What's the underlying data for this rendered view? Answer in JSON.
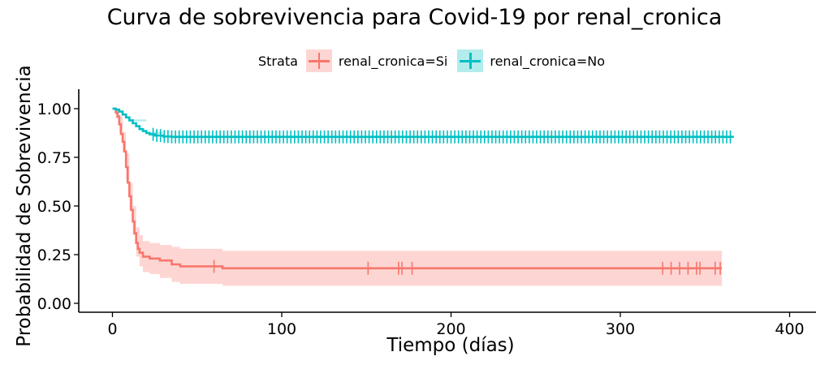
{
  "chart_data": {
    "type": "line",
    "title": "Curva de sobrevivencia para Covid-19 por renal_cronica",
    "xlabel": "Tiempo (días)",
    "ylabel": "Probabilidad de Sobrevivencia",
    "xlim": [
      -8,
      407
    ],
    "ylim": [
      -0.05,
      1.05
    ],
    "xticks": [
      0,
      100,
      200,
      300,
      400
    ],
    "yticks": [
      0.0,
      0.25,
      0.5,
      0.75,
      1.0
    ],
    "ytick_labels": [
      "0.00",
      "0.25",
      "0.50",
      "0.75",
      "1.00"
    ],
    "grid": false,
    "legend": {
      "position": "top",
      "title": "Strata",
      "entries": [
        "renal_cronica=Si",
        "renal_cronica=No"
      ]
    },
    "series": [
      {
        "name": "renal_cronica=Si",
        "color": "#F8766D",
        "step": [
          [
            0,
            1.0
          ],
          [
            1,
            1.0
          ],
          [
            2,
            0.98
          ],
          [
            3,
            0.96
          ],
          [
            4,
            0.92
          ],
          [
            5,
            0.87
          ],
          [
            6,
            0.83
          ],
          [
            7,
            0.78
          ],
          [
            8,
            0.7
          ],
          [
            9,
            0.62
          ],
          [
            10,
            0.55
          ],
          [
            11,
            0.48
          ],
          [
            12,
            0.42
          ],
          [
            13,
            0.36
          ],
          [
            14,
            0.31
          ],
          [
            15,
            0.28
          ],
          [
            16,
            0.26
          ],
          [
            18,
            0.24
          ],
          [
            22,
            0.23
          ],
          [
            28,
            0.22
          ],
          [
            35,
            0.2
          ],
          [
            40,
            0.19
          ],
          [
            65,
            0.18
          ],
          [
            360,
            0.18
          ]
        ],
        "lower": [
          [
            0,
            1.0
          ],
          [
            2,
            0.95
          ],
          [
            4,
            0.88
          ],
          [
            6,
            0.78
          ],
          [
            8,
            0.63
          ],
          [
            10,
            0.48
          ],
          [
            12,
            0.35
          ],
          [
            14,
            0.24
          ],
          [
            16,
            0.19
          ],
          [
            18,
            0.16
          ],
          [
            22,
            0.15
          ],
          [
            28,
            0.13
          ],
          [
            35,
            0.11
          ],
          [
            40,
            0.1
          ],
          [
            65,
            0.09
          ],
          [
            360,
            0.09
          ]
        ],
        "upper": [
          [
            0,
            1.0
          ],
          [
            2,
            1.0
          ],
          [
            4,
            0.96
          ],
          [
            6,
            0.88
          ],
          [
            8,
            0.77
          ],
          [
            10,
            0.62
          ],
          [
            12,
            0.5
          ],
          [
            14,
            0.39
          ],
          [
            16,
            0.35
          ],
          [
            18,
            0.32
          ],
          [
            22,
            0.31
          ],
          [
            28,
            0.3
          ],
          [
            35,
            0.29
          ],
          [
            40,
            0.28
          ],
          [
            65,
            0.27
          ],
          [
            360,
            0.27
          ]
        ],
        "censor_times": [
          60,
          151,
          169,
          171,
          177,
          325,
          330,
          335,
          340,
          345,
          347,
          356,
          359
        ]
      },
      {
        "name": "renal_cronica=No",
        "color": "#00BFC4",
        "step": [
          [
            0,
            1.0
          ],
          [
            2,
            0.995
          ],
          [
            4,
            0.985
          ],
          [
            6,
            0.97
          ],
          [
            8,
            0.955
          ],
          [
            10,
            0.94
          ],
          [
            12,
            0.925
          ],
          [
            14,
            0.91
          ],
          [
            16,
            0.895
          ],
          [
            18,
            0.885
          ],
          [
            20,
            0.875
          ],
          [
            22,
            0.868
          ],
          [
            25,
            0.862
          ],
          [
            30,
            0.857
          ],
          [
            35,
            0.855
          ],
          [
            367,
            0.855
          ]
        ],
        "lower": [
          [
            0,
            1.0
          ],
          [
            10,
            0.935
          ],
          [
            20,
            0.87
          ],
          [
            30,
            0.852
          ],
          [
            367,
            0.85
          ]
        ],
        "upper": [
          [
            0,
            1.0
          ],
          [
            10,
            0.945
          ],
          [
            20,
            0.88
          ],
          [
            30,
            0.862
          ],
          [
            367,
            0.86
          ]
        ],
        "censor_band": [
          24,
          365
        ]
      }
    ]
  }
}
